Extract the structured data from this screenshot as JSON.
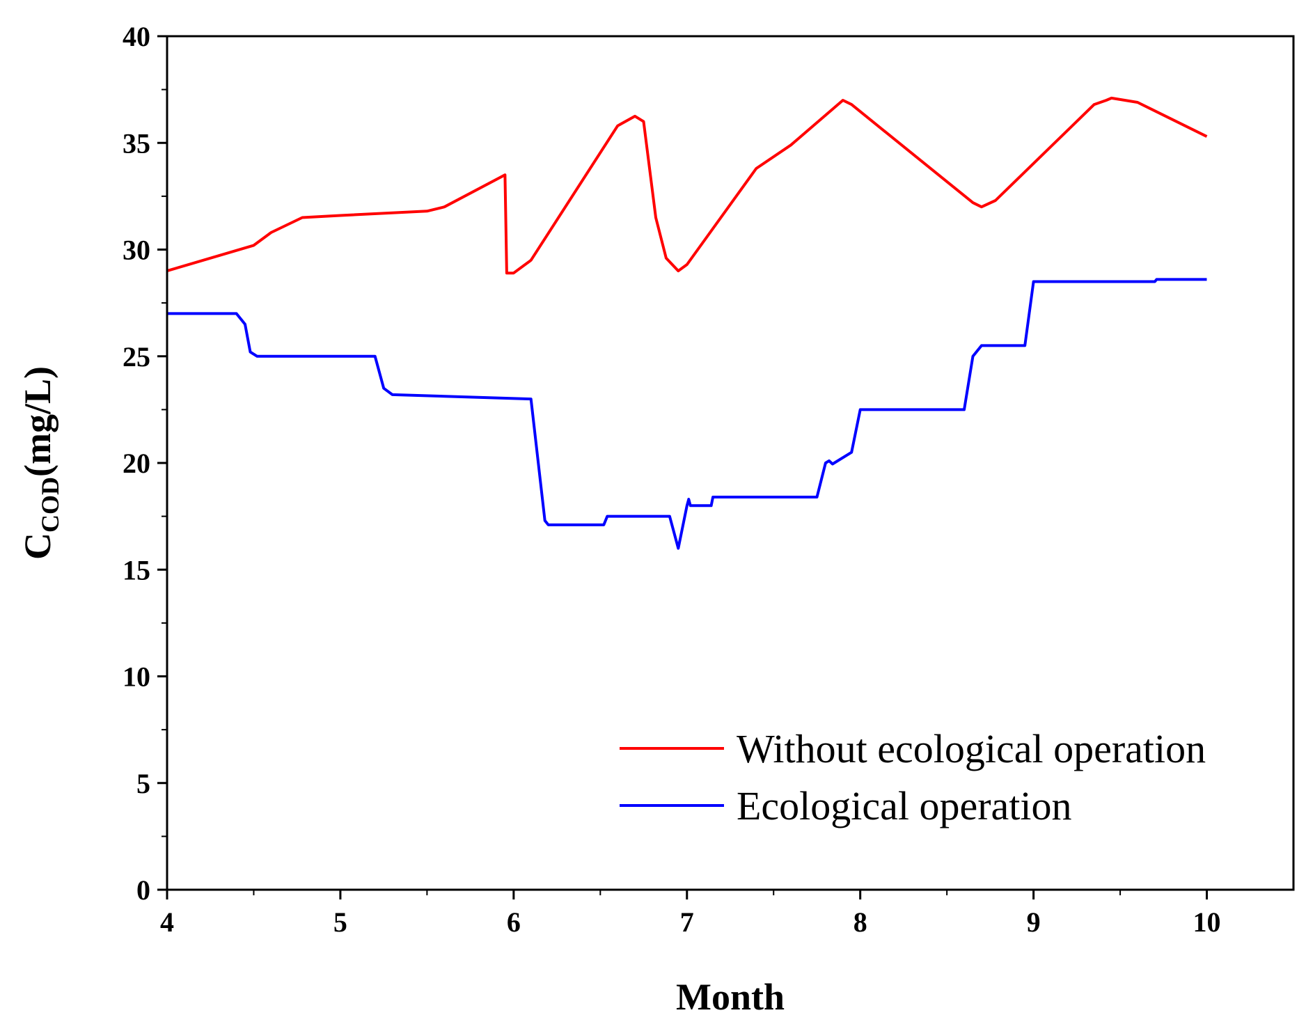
{
  "chart_data": {
    "type": "line",
    "title": "",
    "xlabel": "Month",
    "ylabel": {
      "main": "C",
      "subscript": "COD",
      "unit": "(mg/L)"
    },
    "xlim": [
      4,
      10.5
    ],
    "ylim": [
      0,
      40
    ],
    "xticks": [
      4,
      5,
      6,
      7,
      8,
      9,
      10
    ],
    "yticks": [
      0,
      5,
      10,
      15,
      20,
      25,
      30,
      35,
      40
    ],
    "grid": false,
    "legend_position": "bottom-right",
    "series": [
      {
        "name": "Without ecological operation",
        "color": "#ff0000",
        "points": [
          [
            4.0,
            29.0
          ],
          [
            4.5,
            30.2
          ],
          [
            4.6,
            30.8
          ],
          [
            4.78,
            31.5
          ],
          [
            5.0,
            31.6
          ],
          [
            5.5,
            31.8
          ],
          [
            5.6,
            32.0
          ],
          [
            5.95,
            33.5
          ],
          [
            5.96,
            28.9
          ],
          [
            6.0,
            28.9
          ],
          [
            6.1,
            29.5
          ],
          [
            6.6,
            35.8
          ],
          [
            6.7,
            36.25
          ],
          [
            6.75,
            36.0
          ],
          [
            6.82,
            31.5
          ],
          [
            6.88,
            29.6
          ],
          [
            6.95,
            29.0
          ],
          [
            7.0,
            29.3
          ],
          [
            7.4,
            33.8
          ],
          [
            7.6,
            34.9
          ],
          [
            7.9,
            37.0
          ],
          [
            7.95,
            36.8
          ],
          [
            8.65,
            32.2
          ],
          [
            8.7,
            32.0
          ],
          [
            8.78,
            32.3
          ],
          [
            9.35,
            36.8
          ],
          [
            9.42,
            37.0
          ],
          [
            9.45,
            37.1
          ],
          [
            9.6,
            36.9
          ],
          [
            10.0,
            35.3
          ]
        ]
      },
      {
        "name": "Ecological operation",
        "color": "#0000ff",
        "points": [
          [
            4.0,
            27.0
          ],
          [
            4.4,
            27.0
          ],
          [
            4.45,
            26.5
          ],
          [
            4.48,
            25.2
          ],
          [
            4.52,
            25.0
          ],
          [
            5.2,
            25.0
          ],
          [
            5.25,
            23.5
          ],
          [
            5.3,
            23.2
          ],
          [
            6.1,
            23.0
          ],
          [
            6.18,
            17.3
          ],
          [
            6.2,
            17.1
          ],
          [
            6.52,
            17.1
          ],
          [
            6.54,
            17.5
          ],
          [
            6.9,
            17.5
          ],
          [
            6.95,
            16.0
          ],
          [
            7.0,
            18.0
          ],
          [
            7.01,
            18.3
          ],
          [
            7.02,
            18.0
          ],
          [
            7.14,
            18.0
          ],
          [
            7.15,
            18.4
          ],
          [
            7.75,
            18.4
          ],
          [
            7.8,
            20.0
          ],
          [
            7.82,
            20.1
          ],
          [
            7.84,
            19.95
          ],
          [
            7.95,
            20.5
          ],
          [
            8.0,
            22.5
          ],
          [
            8.6,
            22.5
          ],
          [
            8.65,
            25.0
          ],
          [
            8.7,
            25.5
          ],
          [
            8.95,
            25.5
          ],
          [
            9.0,
            28.5
          ],
          [
            9.7,
            28.5
          ],
          [
            9.71,
            28.6
          ],
          [
            10.0,
            28.6
          ]
        ]
      }
    ]
  }
}
